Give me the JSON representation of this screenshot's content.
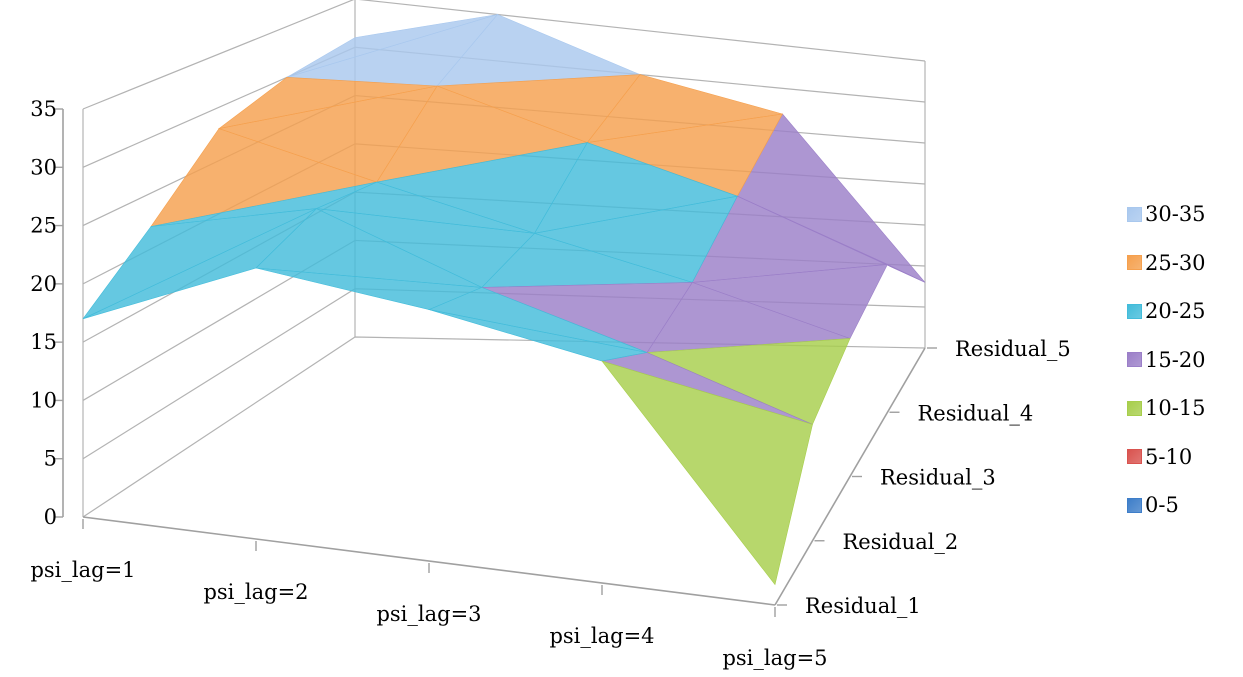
{
  "chart_data": {
    "type": "surface",
    "title": "",
    "z_ticks": [
      "0",
      "5",
      "10",
      "15",
      "20",
      "25",
      "30",
      "35"
    ],
    "zlim": [
      0,
      35
    ],
    "x_categories": [
      "psi_lag=1",
      "psi_lag=2",
      "psi_lag=3",
      "psi_lag=4",
      "psi_lag=5"
    ],
    "y_categories": [
      "Residual_1",
      "Residual_2",
      "Residual_3",
      "Residual_4",
      "Residual_5"
    ],
    "values": [
      [
        17,
        24,
        23,
        21,
        2
      ],
      [
        22,
        26,
        21,
        17,
        12
      ],
      [
        28,
        25,
        22,
        19,
        15
      ],
      [
        30,
        31,
        27,
        23,
        17
      ],
      [
        31,
        35,
        30,
        27,
        8
      ]
    ],
    "legend": [
      {
        "label": "30-35",
        "color": "#A9C8EE"
      },
      {
        "label": "25-30",
        "color": "#F5A04E"
      },
      {
        "label": "20-25",
        "color": "#43BCDA"
      },
      {
        "label": "15-20",
        "color": "#9B7FC8"
      },
      {
        "label": "10-15",
        "color": "#A7CE4C"
      },
      {
        "label": "5-10",
        "color": "#D9534F"
      },
      {
        "label": "0-5",
        "color": "#3E7EC9"
      }
    ],
    "bands": [
      0,
      5,
      10,
      15,
      20,
      25,
      30,
      35
    ],
    "legend_position": "right",
    "grid": true
  }
}
